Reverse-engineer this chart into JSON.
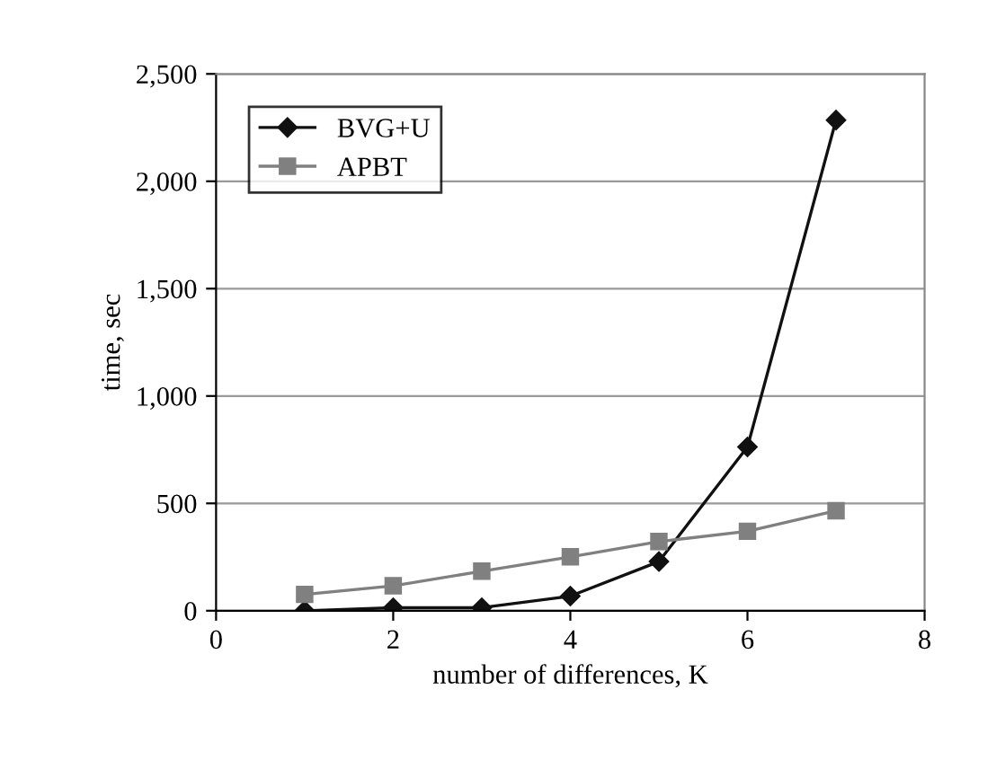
{
  "chart_data": {
    "type": "line",
    "xlabel": "number of differences, K",
    "ylabel": "time, sec",
    "x": [
      1,
      2,
      3,
      4,
      5,
      6,
      7
    ],
    "series": [
      {
        "name": "BVG+U",
        "color": "#111111",
        "marker": "diamond",
        "values": [
          0,
          14,
          14,
          68,
          229,
          763,
          2285
        ]
      },
      {
        "name": "APBT",
        "color": "#808080",
        "marker": "square",
        "values": [
          76,
          116,
          184,
          251,
          322,
          370,
          466
        ]
      }
    ],
    "xlim": [
      0,
      8
    ],
    "xticks": [
      0,
      2,
      4,
      6,
      8
    ],
    "ylim": [
      0,
      2500
    ],
    "yticks": [
      {
        "value": 0,
        "label": "0"
      },
      {
        "value": 500,
        "label": "500"
      },
      {
        "value": 1000,
        "label": "1,000"
      },
      {
        "value": 1500,
        "label": "1,500"
      },
      {
        "value": 2000,
        "label": "2,000"
      },
      {
        "value": 2500,
        "label": "2,500"
      }
    ],
    "grid": "y",
    "legend": "top left"
  }
}
